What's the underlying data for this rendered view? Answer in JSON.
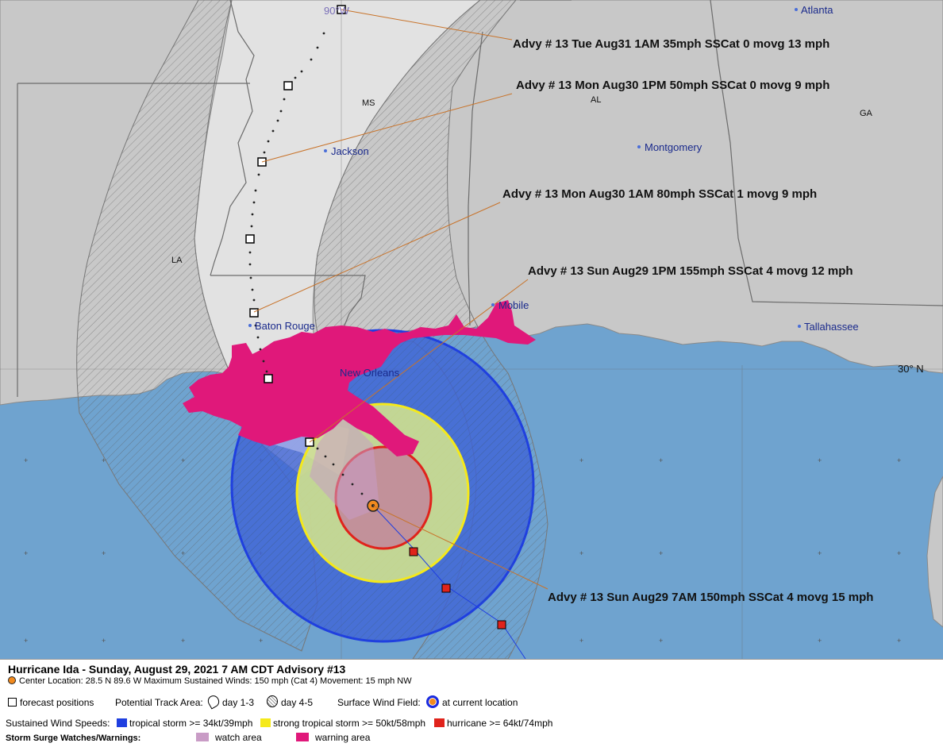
{
  "map": {
    "longitude_label": "90°W",
    "latitude_label": "30° N",
    "states": [
      "MS",
      "AL",
      "GA",
      "LA"
    ],
    "cities": [
      "Atlanta",
      "Jackson",
      "Montgomery",
      "Mobile",
      "Baton Rouge",
      "New Orleans",
      "Tallahassee"
    ],
    "advisories": [
      "Advy # 13 Tue Aug31 1AM  35mph SSCat 0 movg 13 mph",
      "Advy # 13 Mon Aug30 1PM  50mph SSCat 0 movg 9 mph",
      "Advy # 13 Mon Aug30 1AM  80mph SSCat 1 movg 9 mph",
      "Advy # 13 Sun Aug29 1PM  155mph SSCat 4 movg 12 mph",
      "Advy # 13 Sun Aug29 7AM  150mph SSCat 4 movg 15 mph"
    ]
  },
  "legend": {
    "title": "Hurricane Ida  -  Sunday, August 29, 2021  7 AM CDT   Advisory #13",
    "center_line": "Center Location: 28.5 N  89.6 W   Maximum Sustained Winds: 150 mph (Cat 4) Movement: 15 mph NW",
    "forecast_positions": "forecast positions",
    "potential_track_area": "Potential Track Area:",
    "day_1_3": "day 1-3",
    "day_4_5": "day 4-5",
    "surface_wind_field": "Surface Wind Field:",
    "at_current_location": "at current location",
    "sustained_wind_speeds": "Sustained Wind Speeds:",
    "tropical_storm": "tropical storm >= 34kt/39mph",
    "strong_tropical_storm": "strong tropical storm >= 50kt/58mph",
    "hurricane": "hurricane >= 64kt/74mph",
    "storm_surge": "Storm Surge Watches/Warnings:",
    "watch_area": "watch area",
    "warning_area": "warning area"
  },
  "colors": {
    "land": "#c8c8c8",
    "water": "#6fa3cf",
    "cone": "#e2e2e2",
    "tropical_storm": "#1f3fe0",
    "strong_tropical_storm": "#f5e91a",
    "hurricane": "#e0231b",
    "watch": "#c99cc6",
    "warning": "#e0187a",
    "advisory_line": "#c8732a"
  }
}
